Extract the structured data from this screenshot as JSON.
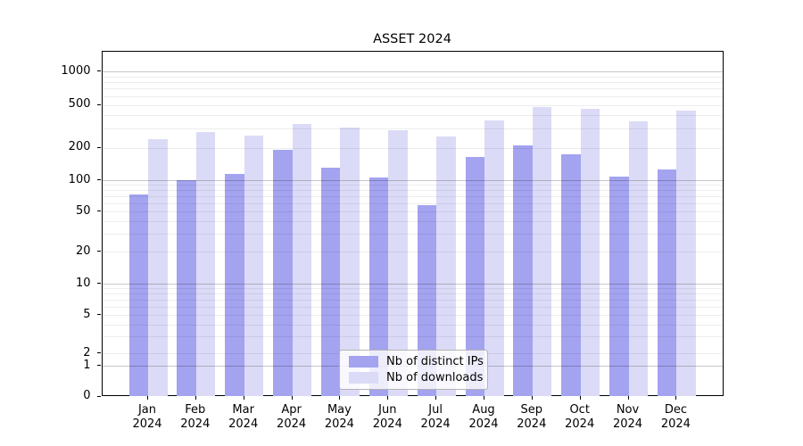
{
  "chart_data": {
    "type": "bar",
    "title": "ASSET 2024",
    "x_tick_months": [
      "Jan",
      "Feb",
      "Mar",
      "Apr",
      "May",
      "Jun",
      "Jul",
      "Aug",
      "Sep",
      "Oct",
      "Nov",
      "Dec"
    ],
    "x_tick_year": "2024",
    "series": [
      {
        "name": "Nb of distinct IPs",
        "color": "#a3a3f0",
        "values": [
          73,
          100,
          115,
          192,
          130,
          106,
          57,
          163,
          210,
          172,
          108,
          126
        ]
      },
      {
        "name": "Nb of downloads",
        "color": "#dbdbf7",
        "values": [
          242,
          280,
          260,
          335,
          310,
          290,
          255,
          355,
          480,
          460,
          350,
          440
        ]
      }
    ],
    "y_scale": "symlog",
    "y_tick_labels": [
      "0",
      "1",
      "2",
      "5",
      "10",
      "20",
      "50",
      "100",
      "200",
      "500",
      "1000"
    ],
    "ylim": [
      0,
      1300
    ],
    "grid": "both",
    "legend_position": "lower center",
    "gridline_major_values": [
      1,
      10,
      100,
      1000
    ],
    "gridline_minor_values": [
      2,
      3,
      4,
      5,
      6,
      7,
      8,
      9,
      20,
      30,
      40,
      50,
      60,
      70,
      80,
      90,
      200,
      300,
      400,
      500,
      600,
      700,
      800,
      900
    ]
  }
}
